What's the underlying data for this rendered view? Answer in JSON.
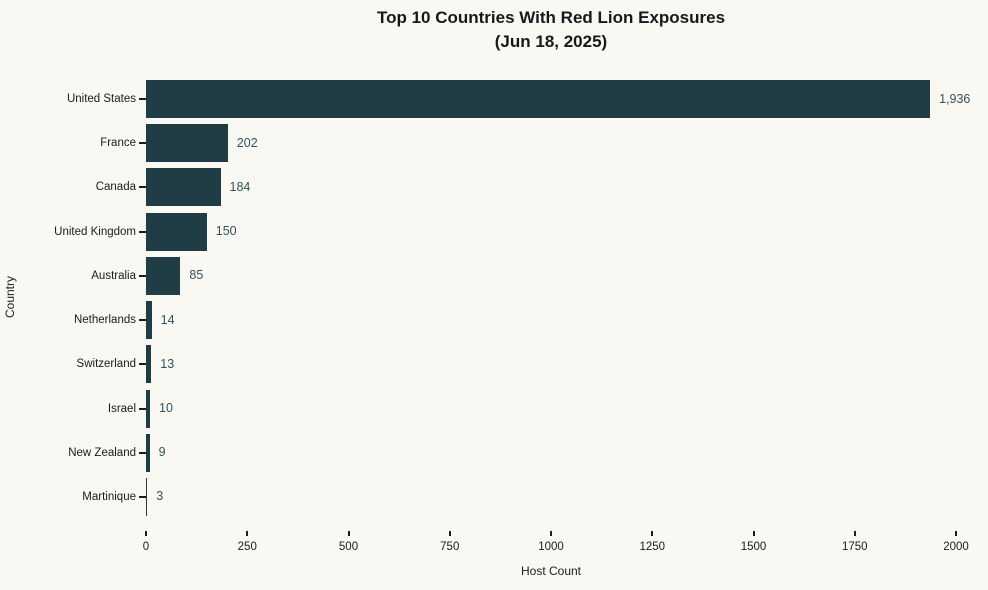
{
  "title": {
    "line1": "Top 10 Countries With Red Lion Exposures",
    "line2": "(Jun 18, 2025)"
  },
  "colors": {
    "background": "#faf8f3",
    "bar": "#203c44",
    "value_label": "#33525c",
    "text": "#1b1b1b"
  },
  "chart_data": {
    "type": "bar",
    "orientation": "horizontal",
    "title": "Top 10 Countries With Red Lion Exposures (Jun 18, 2025)",
    "categories": [
      "United States",
      "France",
      "Canada",
      "United Kingdom",
      "Australia",
      "Netherlands",
      "Switzerland",
      "Israel",
      "New Zealand",
      "Martinique"
    ],
    "values": [
      1936,
      202,
      184,
      150,
      85,
      14,
      13,
      10,
      9,
      3
    ],
    "value_labels": [
      "1,936",
      "202",
      "184",
      "150",
      "85",
      "14",
      "13",
      "10",
      "9",
      "3"
    ],
    "xlabel": "Host Count",
    "ylabel": "Country",
    "xlim": [
      0,
      2000
    ],
    "xticks": [
      0,
      250,
      500,
      750,
      1000,
      1250,
      1500,
      1750,
      2000
    ],
    "xtick_labels": [
      "0",
      "250",
      "500",
      "750",
      "1000",
      "1250",
      "1500",
      "1750",
      "2000"
    ],
    "grid": false,
    "legend": null,
    "bar_color": "#203c44"
  }
}
